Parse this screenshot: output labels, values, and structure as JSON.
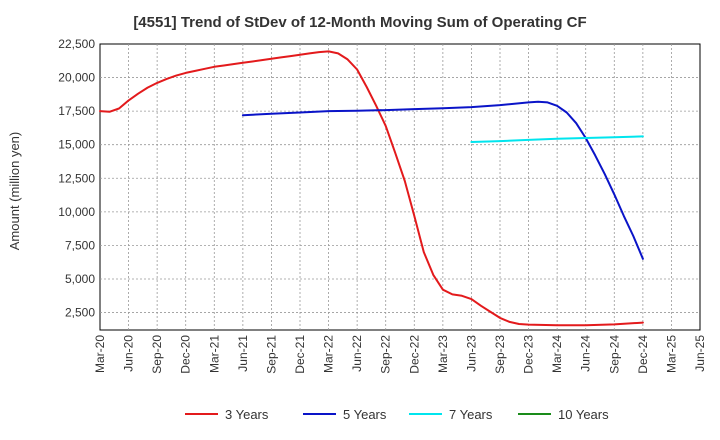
{
  "chart_data": {
    "type": "line",
    "title": "[4551]  Trend of StDev of 12-Month Moving Sum of Operating CF",
    "ylabel": "Amount (million yen)",
    "xlabel": "",
    "x_start": "Mar-20",
    "x_ticks": [
      "Mar-20",
      "Jun-20",
      "Sep-20",
      "Dec-20",
      "Mar-21",
      "Jun-21",
      "Sep-21",
      "Dec-21",
      "Mar-22",
      "Jun-22",
      "Sep-22",
      "Dec-22",
      "Mar-23",
      "Jun-23",
      "Sep-23",
      "Dec-23",
      "Mar-24",
      "Jun-24",
      "Sep-24",
      "Dec-24",
      "Mar-25",
      "Jun-25"
    ],
    "xlim": [
      "Mar-20",
      "Jun-25"
    ],
    "ylim": [
      1200,
      22500
    ],
    "y_ticks": [
      2500,
      5000,
      7500,
      10000,
      12500,
      15000,
      17500,
      20000,
      22500
    ],
    "y_tick_labels": [
      "2,500",
      "5,000",
      "7,500",
      "10,000",
      "12,500",
      "15,000",
      "17,500",
      "20,000",
      "22,500"
    ],
    "grid": true,
    "legend_position": "bottom",
    "series": [
      {
        "name": "3 Years",
        "color": "#e31a1c",
        "x": [
          "Mar-20",
          "Apr-20",
          "May-20",
          "Jun-20",
          "Jul-20",
          "Aug-20",
          "Sep-20",
          "Oct-20",
          "Nov-20",
          "Dec-20",
          "Jan-21",
          "Feb-21",
          "Mar-21",
          "Apr-21",
          "May-21",
          "Jun-21",
          "Jul-21",
          "Aug-21",
          "Sep-21",
          "Oct-21",
          "Nov-21",
          "Dec-21",
          "Jan-22",
          "Feb-22",
          "Mar-22",
          "Apr-22",
          "May-22",
          "Jun-22",
          "Jul-22",
          "Aug-22",
          "Sep-22",
          "Oct-22",
          "Nov-22",
          "Dec-22",
          "Jan-23",
          "Feb-23",
          "Mar-23",
          "Apr-23",
          "May-23",
          "Jun-23",
          "Jul-23",
          "Aug-23",
          "Sep-23",
          "Oct-23",
          "Nov-23",
          "Dec-23",
          "Mar-24",
          "Jun-24",
          "Sep-24",
          "Dec-24"
        ],
        "values": [
          17500,
          17450,
          17700,
          18300,
          18800,
          19250,
          19600,
          19900,
          20150,
          20350,
          20500,
          20650,
          20800,
          20900,
          21000,
          21100,
          21200,
          21300,
          21400,
          21500,
          21600,
          21700,
          21800,
          21900,
          21950,
          21800,
          21350,
          20600,
          19300,
          17900,
          16400,
          14400,
          12300,
          9700,
          7000,
          5300,
          4200,
          3850,
          3750,
          3500,
          3000,
          2550,
          2100,
          1800,
          1650,
          1600,
          1550,
          1560,
          1620,
          1750
        ]
      },
      {
        "name": "5 Years",
        "color": "#0a14c8",
        "x": [
          "Jun-21",
          "Sep-21",
          "Dec-21",
          "Mar-22",
          "Jun-22",
          "Sep-22",
          "Dec-22",
          "Mar-23",
          "Jun-23",
          "Sep-23",
          "Dec-23",
          "Jan-24",
          "Feb-24",
          "Mar-24",
          "Apr-24",
          "May-24",
          "Jun-24",
          "Jul-24",
          "Aug-24",
          "Sep-24",
          "Oct-24",
          "Nov-24",
          "Dec-24"
        ],
        "values": [
          17200,
          17300,
          17400,
          17500,
          17530,
          17580,
          17650,
          17720,
          17800,
          17950,
          18150,
          18200,
          18150,
          17900,
          17400,
          16600,
          15500,
          14200,
          12800,
          11300,
          9700,
          8200,
          6500
        ]
      },
      {
        "name": "7 Years",
        "color": "#00e5ee",
        "x": [
          "Jun-23",
          "Sep-23",
          "Dec-23",
          "Mar-24",
          "Jun-24",
          "Sep-24",
          "Dec-24"
        ],
        "values": [
          15200,
          15270,
          15360,
          15440,
          15500,
          15560,
          15620
        ]
      },
      {
        "name": "10 Years",
        "color": "#1a8c1a",
        "x": [],
        "values": []
      }
    ]
  }
}
